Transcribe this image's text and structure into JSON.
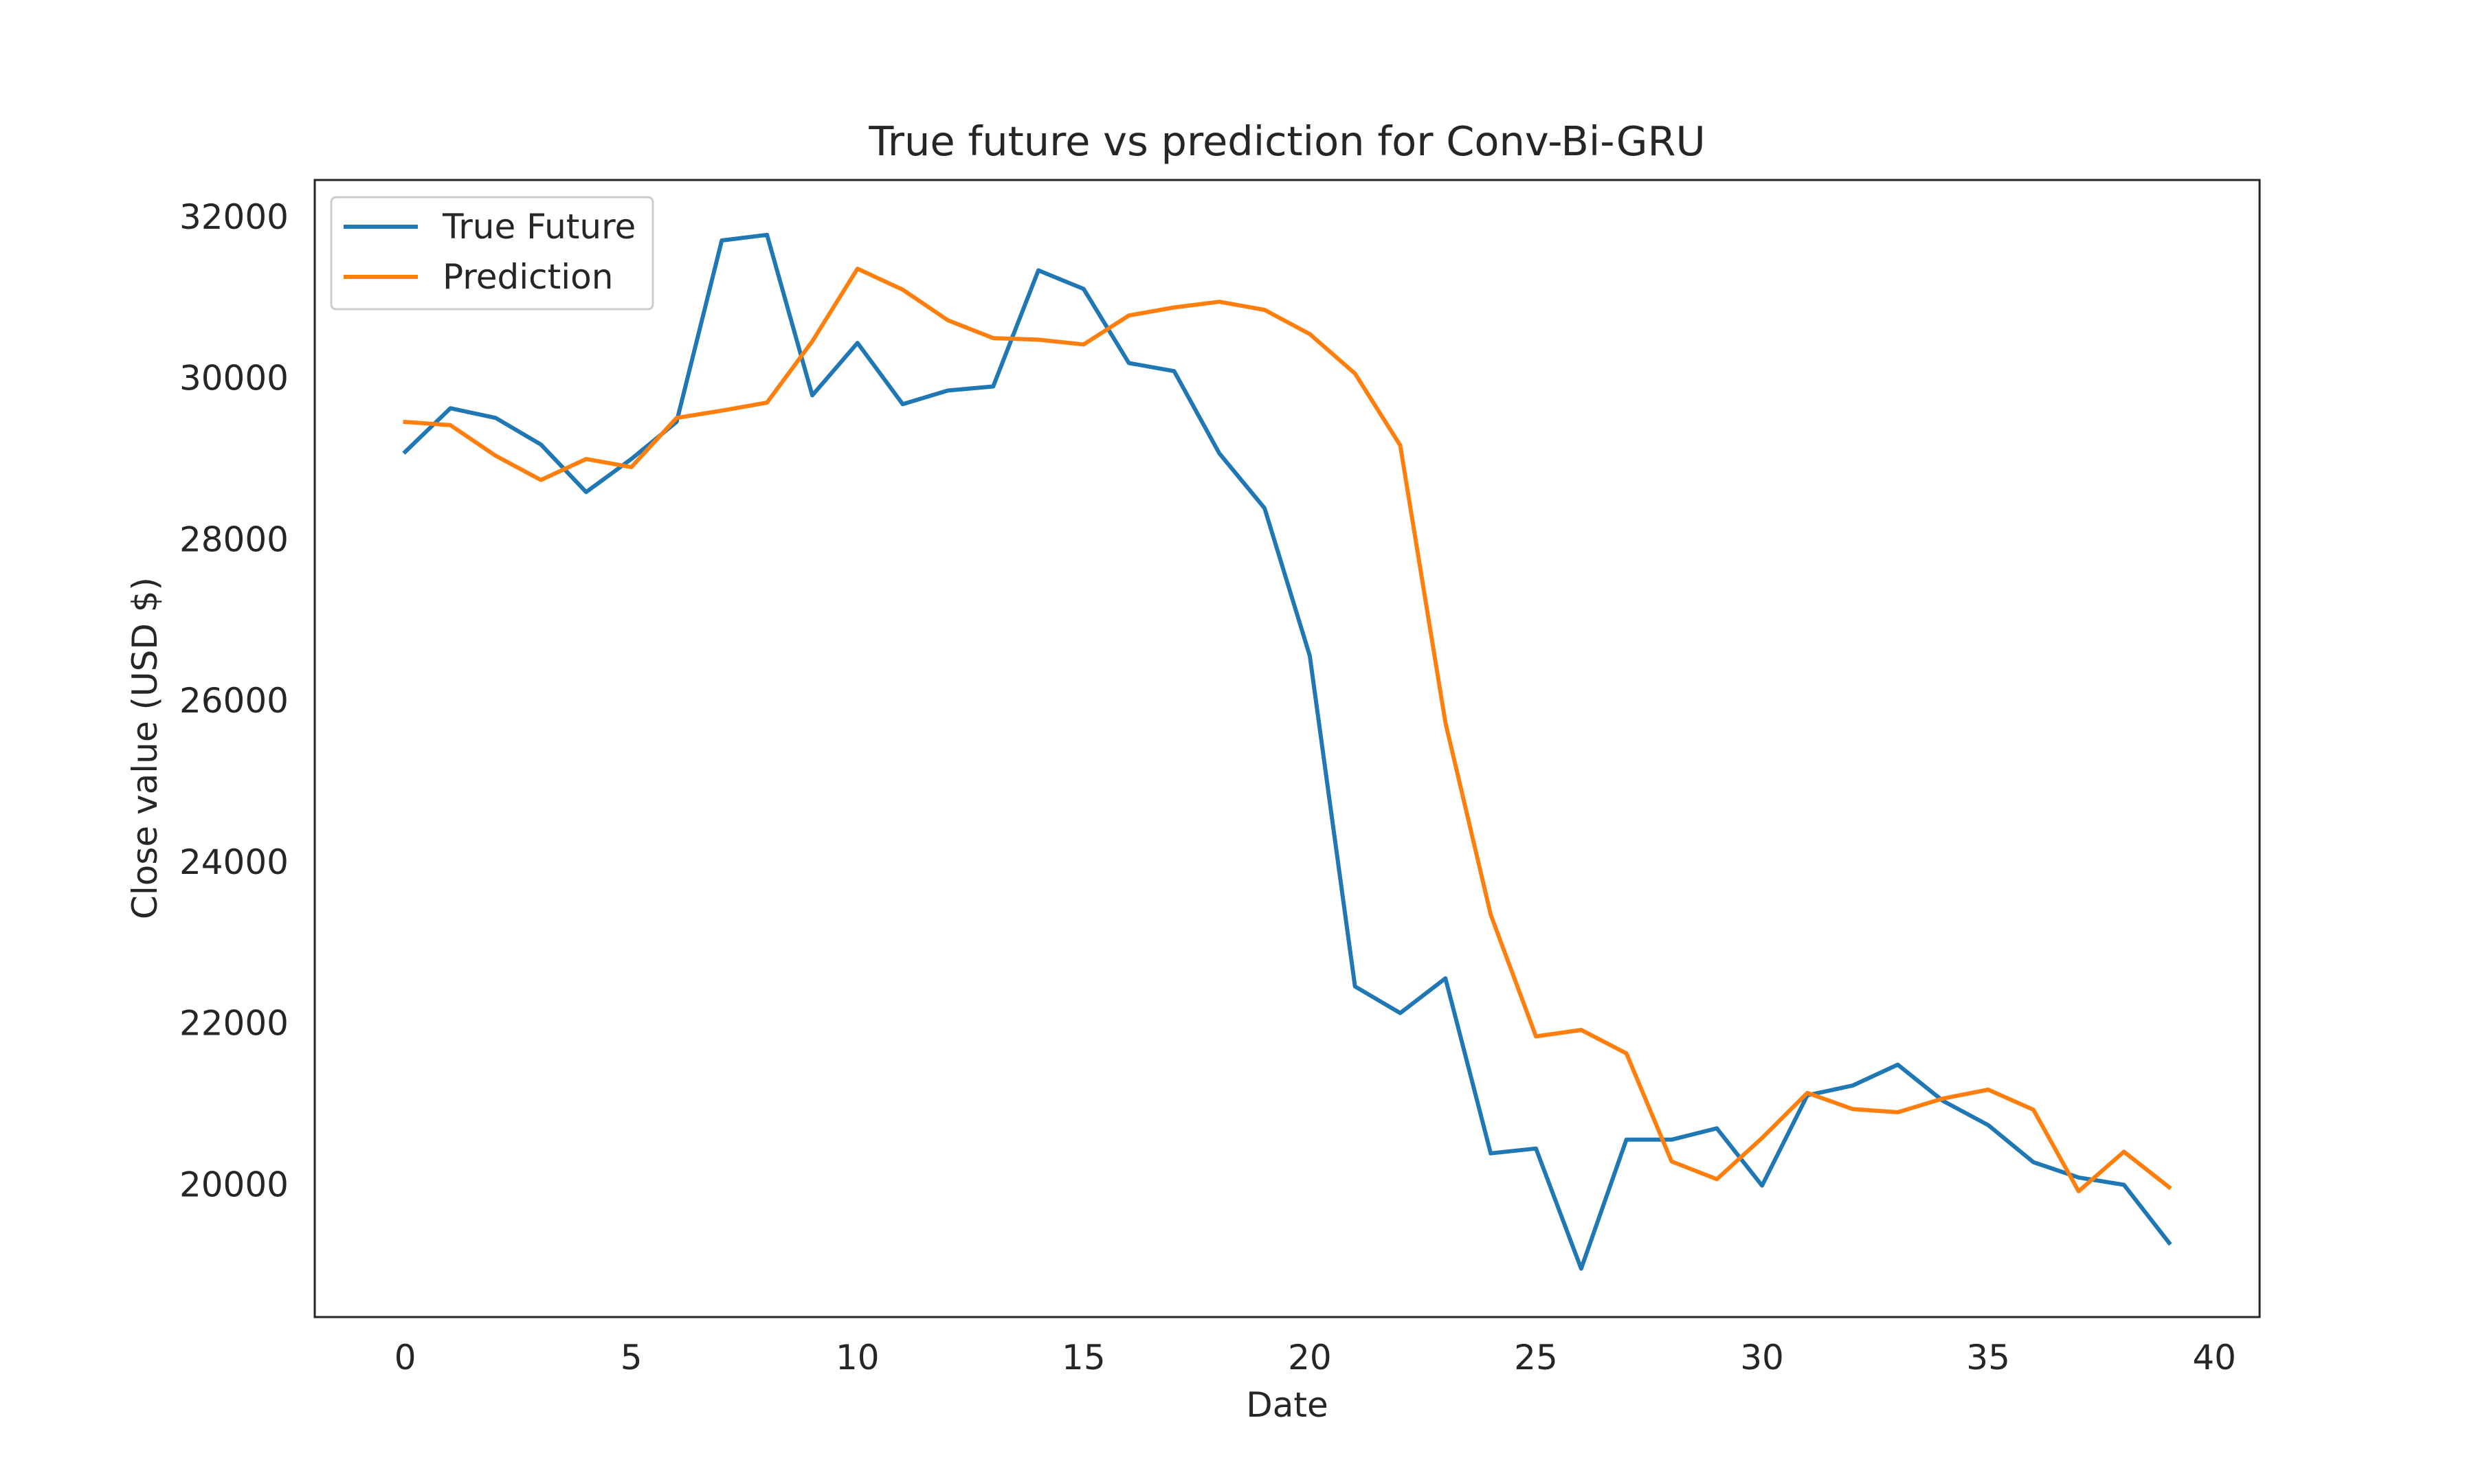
{
  "chart_data": {
    "type": "line",
    "title": "True future vs prediction for Conv-Bi-GRU",
    "xlabel": "Date",
    "ylabel": "Close value (USD $)",
    "xlim": [
      -2,
      41
    ],
    "ylim": [
      18350,
      32450
    ],
    "x_ticks": [
      0,
      5,
      10,
      15,
      20,
      25,
      30,
      35,
      40
    ],
    "y_ticks": [
      20000,
      22000,
      24000,
      26000,
      28000,
      30000,
      32000
    ],
    "grid": false,
    "legend_position": "upper-left",
    "x": [
      0,
      1,
      2,
      3,
      4,
      5,
      6,
      7,
      8,
      9,
      10,
      11,
      12,
      13,
      14,
      15,
      16,
      17,
      18,
      19,
      20,
      21,
      22,
      23,
      24,
      25,
      26,
      27,
      28,
      29,
      30,
      31,
      32,
      33,
      34,
      35,
      36,
      37,
      38,
      39
    ],
    "series": [
      {
        "name": "True Future",
        "color": "#1f77b4",
        "values": [
          29080,
          29620,
          29500,
          29170,
          28580,
          28990,
          29450,
          31700,
          31770,
          29780,
          30430,
          29670,
          29840,
          29890,
          31330,
          31100,
          30180,
          30080,
          29060,
          28380,
          26550,
          22450,
          22120,
          22550,
          20380,
          20440,
          18950,
          20550,
          20550,
          20690,
          19980,
          21100,
          21220,
          21480,
          21030,
          20730,
          20270,
          20080,
          19990,
          19270
        ]
      },
      {
        "name": "Prediction",
        "color": "#ff7f0e",
        "values": [
          29450,
          29410,
          29030,
          28730,
          28990,
          28890,
          29500,
          29590,
          29690,
          30450,
          31350,
          31090,
          30710,
          30490,
          30470,
          30410,
          30770,
          30870,
          30940,
          30840,
          30540,
          30050,
          29160,
          25720,
          23340,
          21830,
          21910,
          21620,
          20280,
          20060,
          20570,
          21130,
          20930,
          20890,
          21060,
          21170,
          20920,
          19910,
          20400,
          19960
        ]
      }
    ]
  }
}
